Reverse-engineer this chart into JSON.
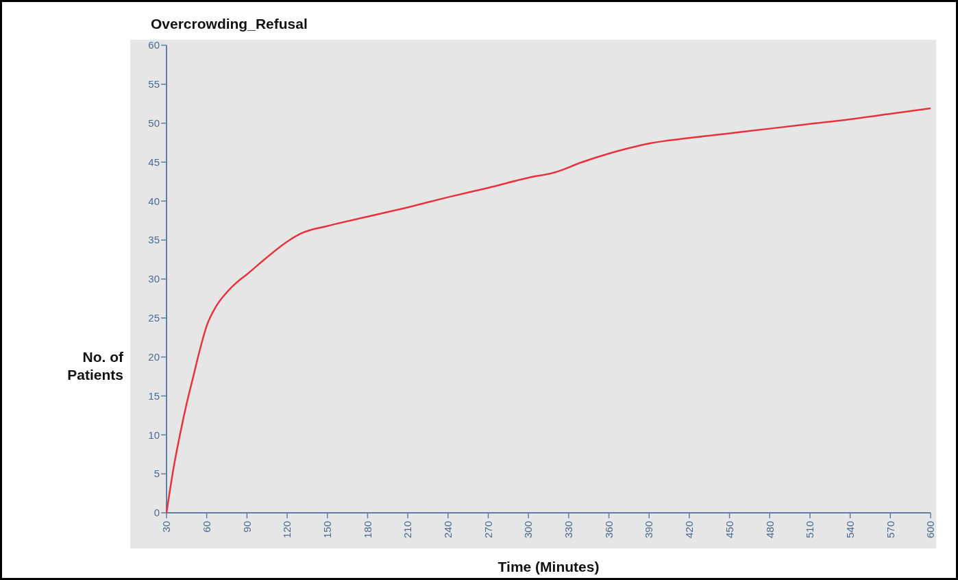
{
  "chart_data": {
    "type": "line",
    "title": "Overcrowding_Refusal",
    "xlabel": "Time (Minutes)",
    "ylabel": "No. of Patients",
    "xlim": [
      30,
      600
    ],
    "xticks": [
      30,
      60,
      90,
      120,
      150,
      180,
      210,
      240,
      270,
      300,
      330,
      360,
      390,
      420,
      450,
      480,
      510,
      540,
      570,
      600
    ],
    "ylim": [
      0,
      60
    ],
    "yticks": [
      0,
      5,
      10,
      15,
      20,
      25,
      30,
      35,
      40,
      45,
      50,
      55,
      60
    ],
    "series": [
      {
        "color": "#e8323c",
        "x": [
          30,
          35,
          40,
          45,
          50,
          55,
          60,
          67,
          75,
          82,
          90,
          105,
          120,
          131,
          150,
          180,
          210,
          240,
          270,
          300,
          320,
          340,
          360,
          375,
          390,
          420,
          450,
          480,
          510,
          540,
          570,
          600
        ],
        "values": [
          0,
          5.5,
          10,
          14,
          17.5,
          21,
          24,
          26.5,
          28.3,
          29.5,
          30.6,
          32.8,
          34.8,
          35.9,
          36.8,
          38,
          39.2,
          40.5,
          41.7,
          43,
          43.7,
          45,
          46.1,
          46.8,
          47.4,
          48.1,
          48.7,
          49.3,
          49.9,
          50.5,
          51.2,
          51.9
        ]
      }
    ],
    "grid": false,
    "marker": "none",
    "line_style": "solid"
  }
}
